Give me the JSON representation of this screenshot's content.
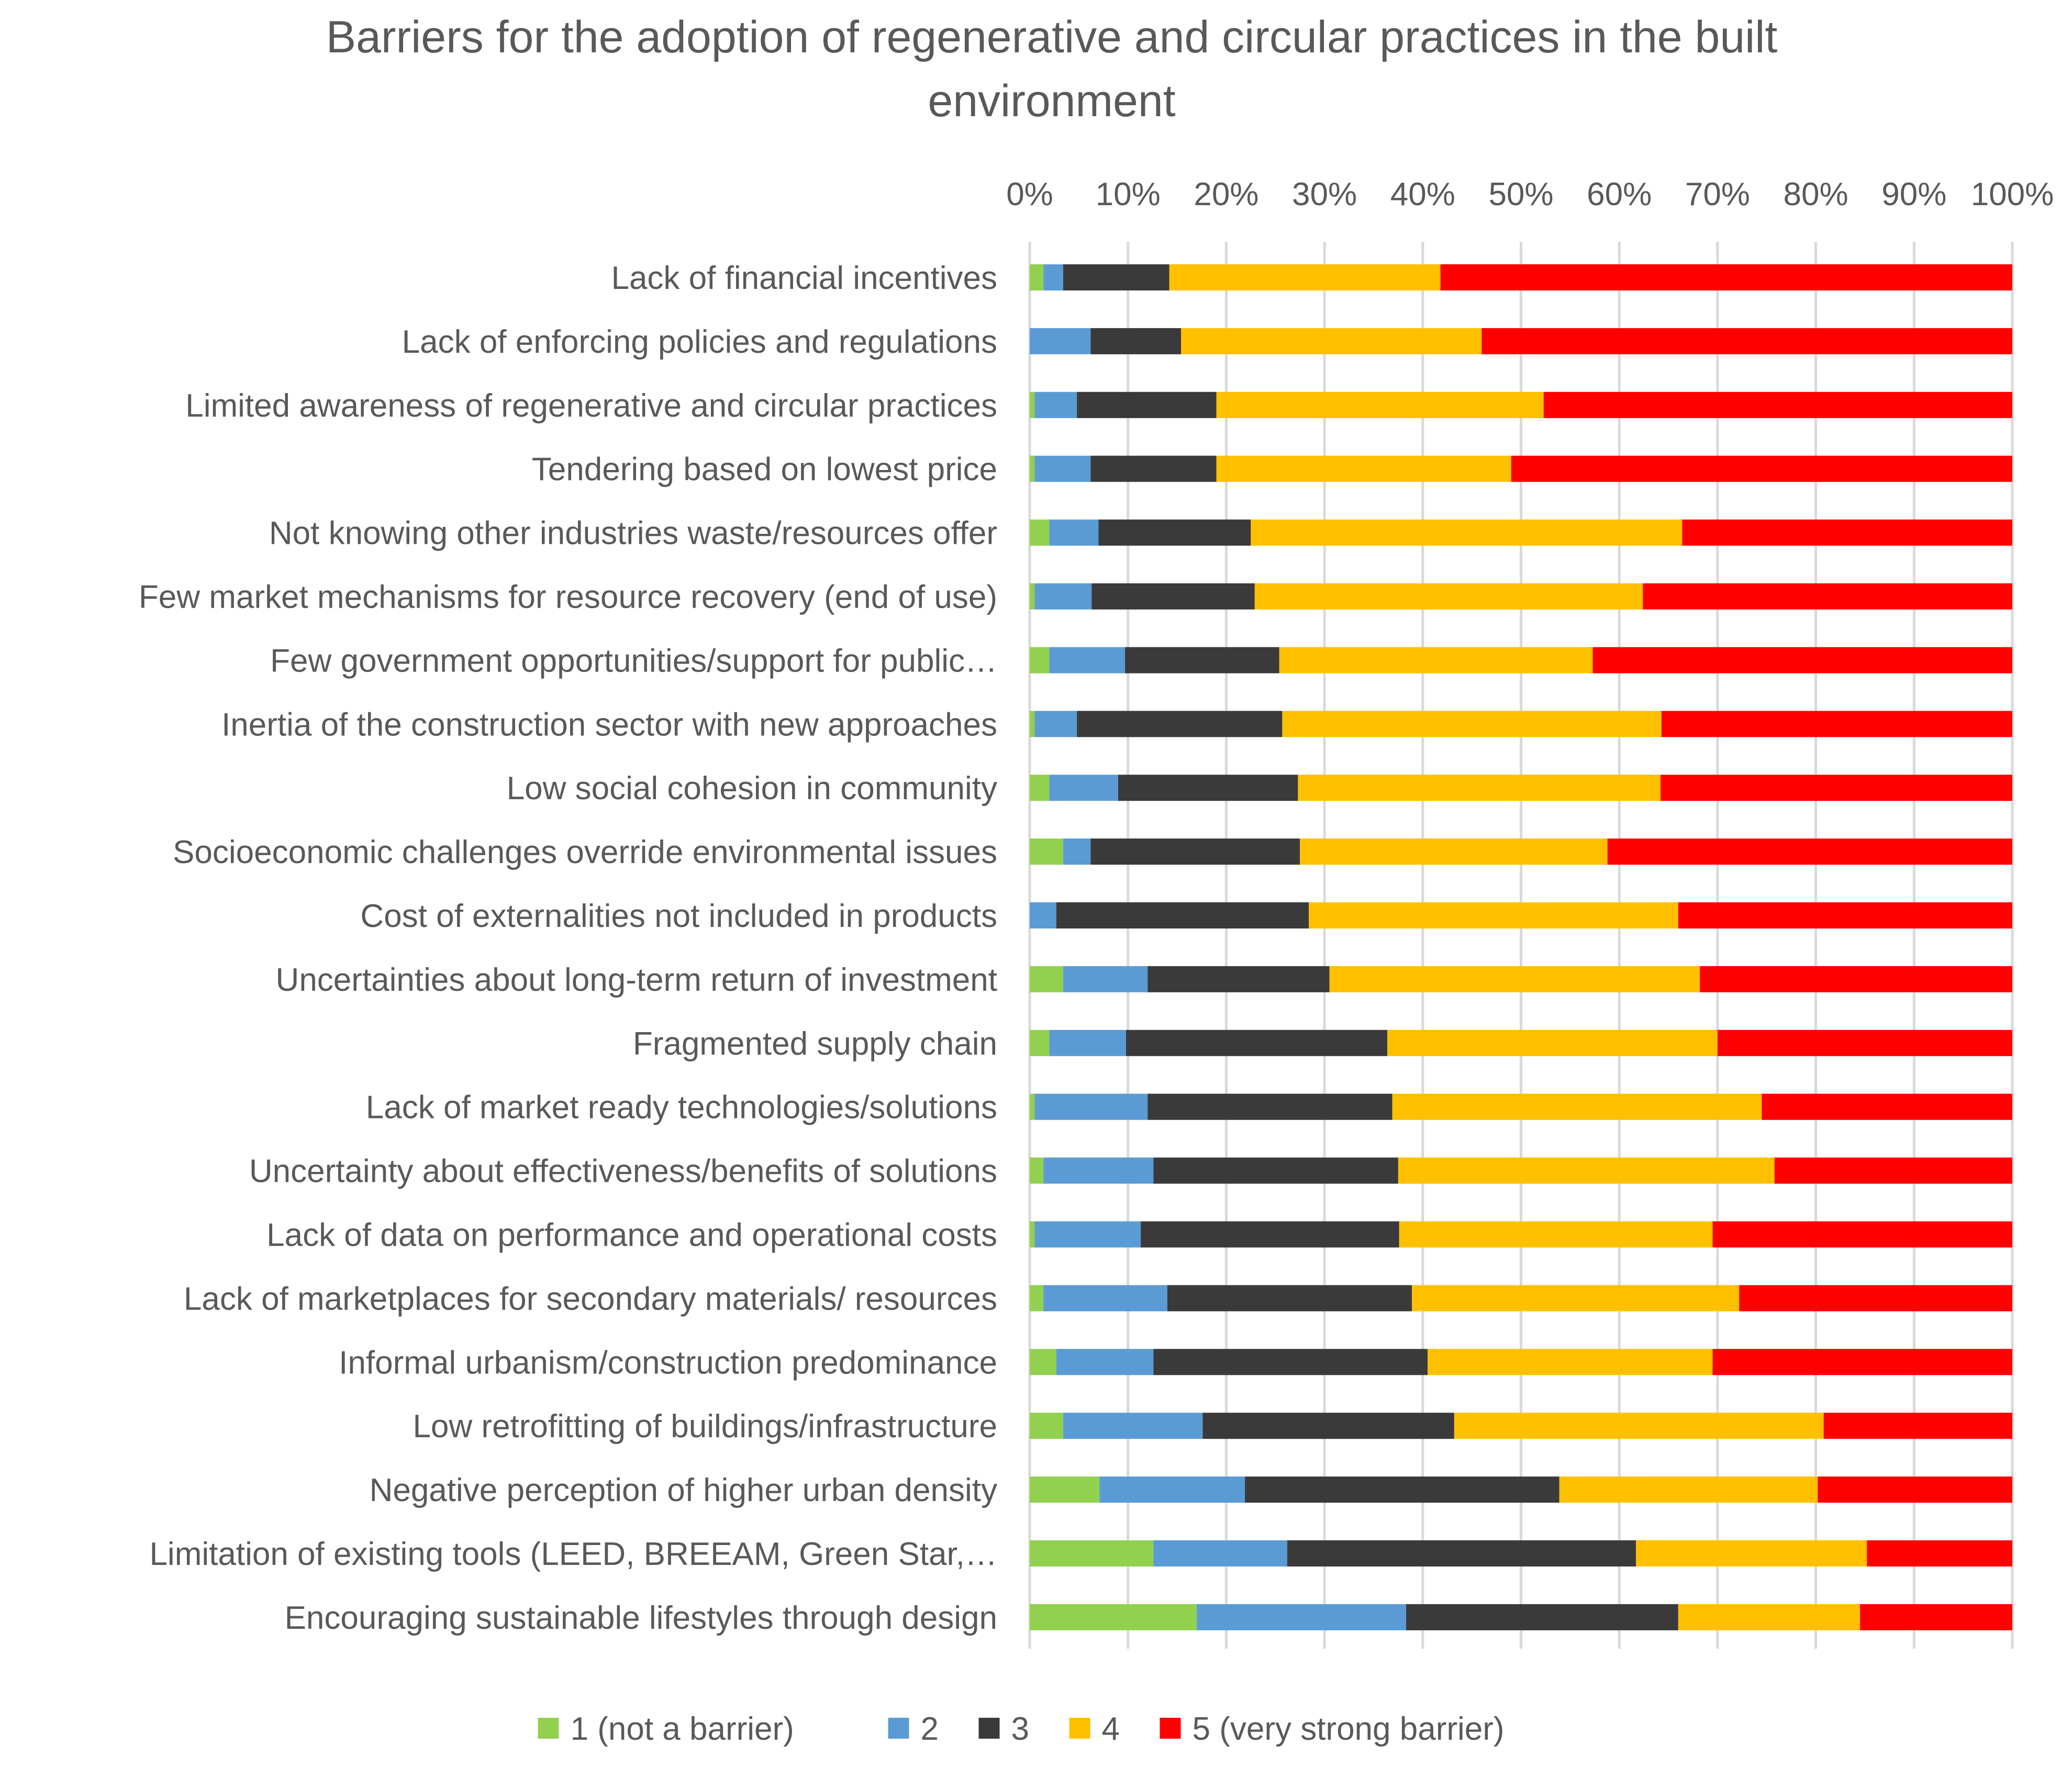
{
  "chart_data": {
    "type": "bar",
    "orientation": "horizontal",
    "stacked": "percent",
    "title": "Barriers for the adoption of regenerative and circular practices in the built environment",
    "title_lines": [
      "Barriers for the adoption of regenerative and circular practices in the built",
      "environment"
    ],
    "x_axis": {
      "position": "top",
      "range": [
        0,
        100
      ],
      "tick_labels": [
        "0%",
        "10%",
        "20%",
        "30%",
        "40%",
        "50%",
        "60%",
        "70%",
        "80%",
        "90%",
        "100%"
      ],
      "gridlines": true
    },
    "categories": [
      "Lack of financial incentives",
      "Lack of enforcing policies and regulations",
      "Limited awareness of regenerative and circular practices",
      "Tendering based on lowest price",
      "Not knowing other industries waste/resources offer",
      "Few market mechanisms for resource recovery (end of use)",
      "Few government opportunities/support for public…",
      "Inertia of the construction sector with new approaches",
      "Low social cohesion in community",
      "Socioeconomic challenges override environmental issues",
      "Cost of externalities not included in products",
      "Uncertainties about long-term return of investment",
      "Fragmented supply chain",
      "Lack of market ready technologies/solutions",
      "Uncertainty about effectiveness/benefits of solutions",
      "Lack of data on performance and operational costs",
      "Lack of marketplaces for secondary materials/ resources",
      "Informal urbanism/construction predominance",
      "Low retrofitting of buildings/infrastructure",
      "Negative perception of higher urban density",
      "Limitation of existing tools (LEED, BREEAM, Green Star,…",
      "Encouraging sustainable lifestyles through design"
    ],
    "series": [
      {
        "name": "1 (not a barrier)",
        "color": "#92D050",
        "values": [
          1.4,
          0,
          0.5,
          0.5,
          2.0,
          0.5,
          2.0,
          0.5,
          2.0,
          3.4,
          0,
          3.4,
          2.0,
          0.5,
          1.4,
          0.5,
          1.4,
          2.7,
          3.4,
          7.1,
          12.6,
          17.0
        ]
      },
      {
        "name": "2",
        "color": "#5B9BD5",
        "values": [
          2.0,
          6.2,
          4.3,
          5.7,
          5.0,
          5.8,
          7.7,
          4.3,
          7.0,
          2.8,
          2.7,
          8.6,
          7.8,
          11.5,
          11.2,
          10.8,
          12.6,
          9.9,
          14.2,
          14.8,
          13.6,
          21.3
        ]
      },
      {
        "name": "3",
        "color": "#3A3A3A",
        "values": [
          10.8,
          9.2,
          14.2,
          12.8,
          15.5,
          16.6,
          15.7,
          20.9,
          18.3,
          21.3,
          25.7,
          18.5,
          26.6,
          24.9,
          24.9,
          26.3,
          24.9,
          27.9,
          25.6,
          32.0,
          35.5,
          27.7
        ]
      },
      {
        "name": "4",
        "color": "#FFC000",
        "values": [
          27.6,
          30.6,
          33.3,
          30.0,
          43.9,
          39.5,
          31.9,
          38.6,
          36.9,
          31.3,
          37.6,
          37.7,
          33.6,
          37.6,
          38.3,
          31.9,
          33.3,
          29.0,
          37.6,
          26.3,
          23.5,
          18.5
        ]
      },
      {
        "name": "5 (very strong barrier)",
        "color": "#FF0000",
        "values": [
          58.2,
          54.0,
          47.7,
          51.0,
          33.6,
          37.6,
          42.7,
          35.7,
          35.8,
          41.2,
          34.0,
          31.8,
          30.0,
          25.5,
          24.2,
          30.5,
          27.8,
          30.5,
          19.2,
          19.8,
          14.8,
          15.5
        ]
      }
    ],
    "legend": {
      "position": "bottom"
    },
    "colors": {
      "gridline": "#D9D9D9",
      "text": "#595959",
      "title": "#595959"
    }
  }
}
